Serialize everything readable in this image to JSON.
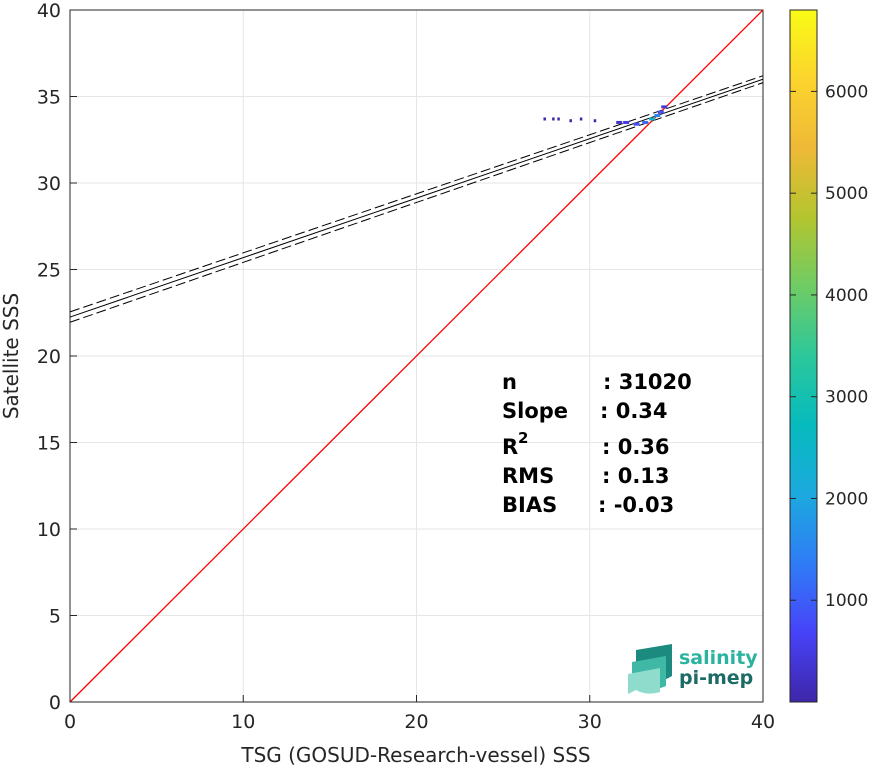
{
  "chart_data": {
    "type": "scatter",
    "xlabel": "TSG (GOSUD-Research-vessel) SSS",
    "ylabel": "Satellite SSS",
    "xlim": [
      0,
      40
    ],
    "ylim": [
      0,
      40
    ],
    "xticks": [
      0,
      10,
      20,
      30,
      40
    ],
    "yticks": [
      0,
      5,
      10,
      15,
      20,
      25,
      30,
      35,
      40
    ],
    "grid": true,
    "identity_line": {
      "x": [
        0,
        40
      ],
      "y": [
        0,
        40
      ],
      "color": "#ff0000"
    },
    "regression": {
      "fit": {
        "x": [
          0,
          40
        ],
        "y": [
          22.25,
          36.0
        ]
      },
      "upper": {
        "x": [
          0,
          40
        ],
        "y": [
          22.55,
          36.2
        ]
      },
      "lower": {
        "x": [
          0,
          40
        ],
        "y": [
          21.95,
          35.8
        ]
      }
    },
    "density_points": [
      {
        "x": 27.4,
        "y": 33.7,
        "count": 1
      },
      {
        "x": 27.9,
        "y": 33.7,
        "count": 1
      },
      {
        "x": 28.2,
        "y": 33.7,
        "count": 1
      },
      {
        "x": 28.9,
        "y": 33.6,
        "count": 1
      },
      {
        "x": 29.5,
        "y": 33.7,
        "count": 1
      },
      {
        "x": 30.3,
        "y": 33.6,
        "count": 2
      },
      {
        "x": 31.7,
        "y": 33.5,
        "count": 300
      },
      {
        "x": 32.1,
        "y": 33.5,
        "count": 500
      },
      {
        "x": 32.7,
        "y": 33.4,
        "count": 800
      },
      {
        "x": 33.2,
        "y": 33.5,
        "count": 1200
      },
      {
        "x": 33.6,
        "y": 33.7,
        "count": 2500
      },
      {
        "x": 33.9,
        "y": 33.9,
        "count": 1500
      },
      {
        "x": 34.1,
        "y": 34.1,
        "count": 900
      },
      {
        "x": 34.3,
        "y": 34.4,
        "count": 400
      }
    ],
    "colorbar": {
      "ticks": [
        1000,
        2000,
        3000,
        4000,
        5000,
        6000
      ],
      "range": [
        0,
        6800
      ],
      "colors": [
        "#3e26a8",
        "#4743f8",
        "#2f7cf6",
        "#1ca9de",
        "#06bbbe",
        "#2cc79b",
        "#6fcc65",
        "#b3c52f",
        "#eeb936",
        "#fcd42e",
        "#f9fb15"
      ]
    },
    "stats": {
      "n_label": "n",
      "n_value": ": 31020",
      "slope_label": "Slope",
      "slope_value": ": 0.34",
      "r2_label": "R",
      "r2_sup": "2",
      "r2_value": ": 0.36",
      "rms_label": "RMS",
      "rms_value": ": 0.13",
      "bias_label": "BIAS",
      "bias_value": ": -0.03"
    }
  },
  "logo": {
    "line1": "salinity",
    "line2": "pi-mep",
    "color1": "#2bb3a0",
    "color2": "#1d6b66"
  }
}
